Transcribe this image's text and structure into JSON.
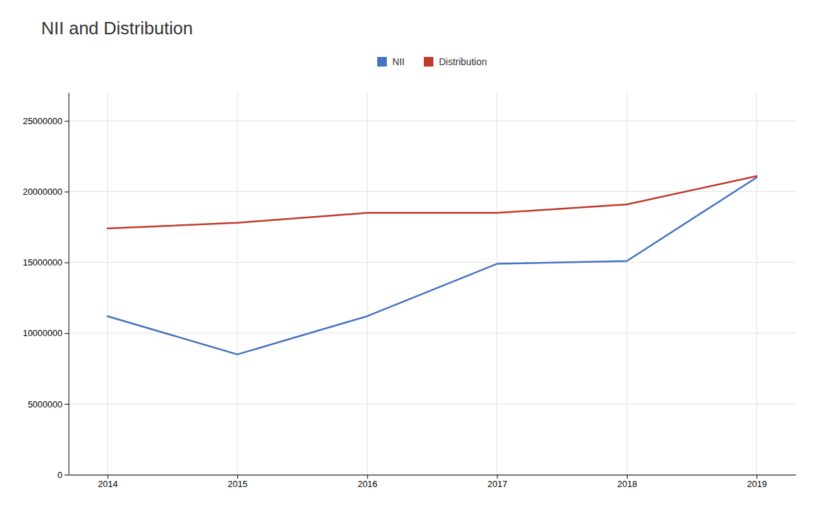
{
  "chart_data": {
    "type": "line",
    "title": "NII and Distribution",
    "x": [
      2014,
      2015,
      2016,
      2017,
      2018,
      2019
    ],
    "series": [
      {
        "name": "NII",
        "color": "#4472c4",
        "values": [
          11200000,
          8500000,
          11200000,
          14900000,
          15100000,
          21000000
        ]
      },
      {
        "name": "Distribution",
        "color": "#c0392b",
        "values": [
          17400000,
          17800000,
          18500000,
          18500000,
          19100000,
          21100000
        ]
      }
    ],
    "xlim": [
      2013.7,
      2019.3
    ],
    "xticks": [
      2014,
      2015,
      2016,
      2017,
      2018,
      2019
    ],
    "ylim": [
      0,
      27000000
    ],
    "yticks": [
      0,
      5000000,
      10000000,
      15000000,
      20000000,
      25000000
    ],
    "grid": true,
    "legend": "top"
  }
}
